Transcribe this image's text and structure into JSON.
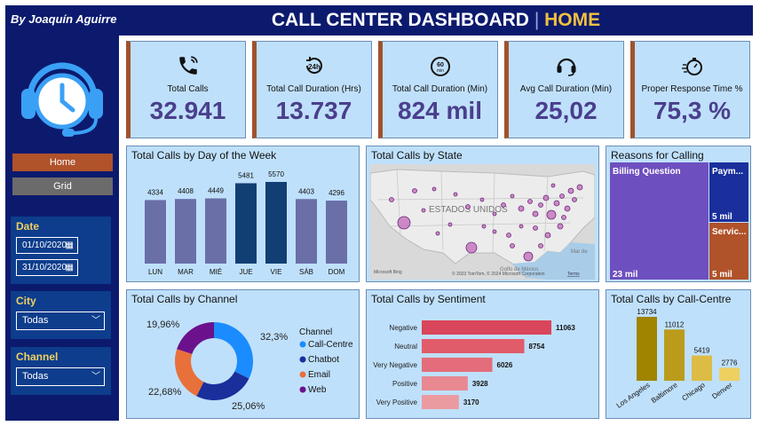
{
  "sidebar": {
    "author": "By Joaquín Aguirre",
    "nav": {
      "home_label": "Home",
      "grid_label": "Grid"
    },
    "filters": {
      "date_label": "Date",
      "date_from": "01/10/2020",
      "date_to": "31/10/2020",
      "city_label": "City",
      "city_value": "Todas",
      "channel_label": "Channel",
      "channel_value": "Todas"
    }
  },
  "header": {
    "title": "CALL CENTER DASHBOARD",
    "separator": "|",
    "subtitle": "HOME"
  },
  "kpis": [
    {
      "label": "Total Calls",
      "value": "32.941",
      "icon": "phone-icon"
    },
    {
      "label": "Total Call Duration (Hrs)",
      "value": "13.737",
      "icon": "24h-clock-icon"
    },
    {
      "label": "Total Call Duration (Min)",
      "value": "824 mil",
      "icon": "60-min-icon"
    },
    {
      "label": "Avg Call Duration (Min)",
      "value": "25,02",
      "icon": "headset-icon"
    },
    {
      "label": "Proper Response Time %",
      "value": "75,3 %",
      "icon": "stopwatch-icon"
    }
  ],
  "panels": {
    "day_of_week": {
      "title": "Total Calls by Day of the Week"
    },
    "state": {
      "title": "Total Calls by State",
      "map_label": "ESTADOS UNIDOS",
      "gulf_label": "Golfo de México",
      "sea_label": "Mar de",
      "copyright": "© 2023 TomTom, © 2024 Microsoft Corporation",
      "terms": "Terms",
      "bing": "Microsoft Bing"
    },
    "reasons": {
      "title": "Reasons for Calling"
    },
    "channel": {
      "title": "Total Calls by Channel",
      "legend_title": "Channel"
    },
    "sentiment": {
      "title": "Total Calls by Sentiment"
    },
    "call_centre": {
      "title": "Total Calls by Call-Centre"
    }
  },
  "colors": {
    "sidebar_bg": "#0c1a6e",
    "panel_bg": "#bfe0fb",
    "kpi_value": "#4a3f8c",
    "accent_gold": "#f0c040",
    "home_button": "#b0522a"
  },
  "chart_data": [
    {
      "type": "bar",
      "categories": [
        "LUN",
        "MAR",
        "MIÉ",
        "JUE",
        "VIE",
        "SÁB",
        "DOM"
      ],
      "values": [
        4334,
        4408,
        4449,
        5481,
        5570,
        4403,
        4296
      ],
      "highlight": [
        "JUE",
        "VIE"
      ],
      "colors": {
        "normal": "#6a6fa8",
        "highlight": "#123f73"
      },
      "title": "Total Calls by Day of the Week"
    },
    {
      "type": "pie",
      "subtype": "donut",
      "title": "Total Calls by Channel",
      "legend_title": "Channel",
      "legend_position": "right",
      "categories": [
        "Call-Centre",
        "Chatbot",
        "Email",
        "Web"
      ],
      "values": [
        32.3,
        25.06,
        22.68,
        19.96
      ],
      "labels": [
        "32,3%",
        "25,06%",
        "22,68%",
        "19,96%"
      ],
      "colors": [
        "#1a8cff",
        "#1a2f9c",
        "#e8703a",
        "#6b118c"
      ]
    },
    {
      "type": "bar",
      "orientation": "horizontal",
      "title": "Total Calls by Sentiment",
      "categories": [
        "Negative",
        "Neutral",
        "Very Negative",
        "Positive",
        "Very Positive"
      ],
      "values": [
        11063,
        8754,
        6026,
        3928,
        3170
      ],
      "colors": [
        "#d9455a",
        "#e25b6a",
        "#e36d7a",
        "#e88890",
        "#eb9aa0"
      ]
    },
    {
      "type": "bar",
      "title": "Total Calls by Call-Centre",
      "categories": [
        "Los Angeles",
        "Baltimore",
        "Chicago",
        "Denver"
      ],
      "values": [
        13734,
        11012,
        5419,
        2776
      ],
      "colors": [
        "#a08400",
        "#bb9b1c",
        "#ddbc45",
        "#eed060"
      ]
    },
    {
      "type": "table",
      "subtype": "treemap",
      "title": "Reasons for Calling",
      "items": [
        {
          "name": "Billing Question",
          "value_label": "23 mil",
          "color": "#6e4fbf"
        },
        {
          "name": "Paym...",
          "value_label": "5 mil",
          "color": "#1a2f9c"
        },
        {
          "name": "Servic...",
          "value_label": "5 mil",
          "color": "#b0522a"
        }
      ]
    }
  ]
}
